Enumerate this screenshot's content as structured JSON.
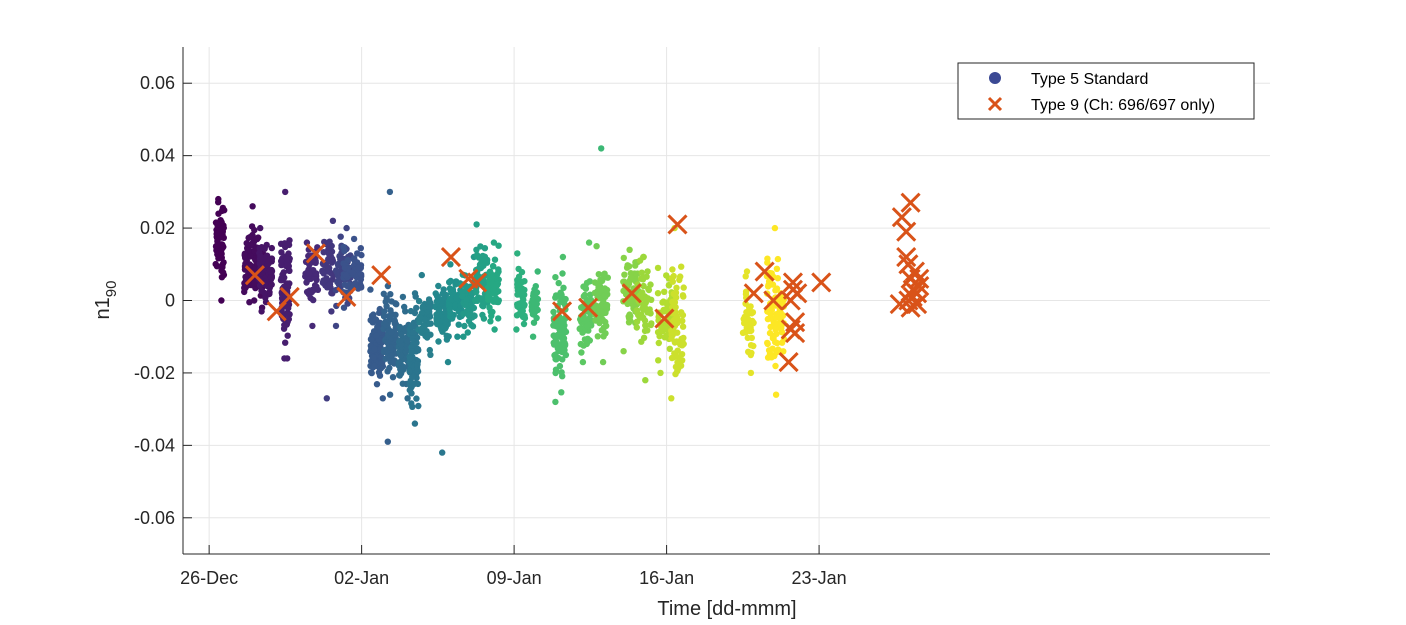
{
  "chart_data": {
    "type": "scatter",
    "title": "",
    "xlabel": "Time [dd-mmm]",
    "ylabel": {
      "base": "n1",
      "subscript": "90"
    },
    "xlim": [
      -1.2,
      48.7
    ],
    "ylim": [
      -0.07,
      0.07
    ],
    "grid": true,
    "legend_position": "top-right",
    "x_ticks": [
      {
        "value": 0,
        "label": "26-Dec"
      },
      {
        "value": 7,
        "label": "02-Jan"
      },
      {
        "value": 14,
        "label": "09-Jan"
      },
      {
        "value": 21,
        "label": "16-Jan"
      },
      {
        "value": 28,
        "label": "23-Jan"
      }
    ],
    "y_ticks": [
      {
        "value": -0.06,
        "label": "-0.06"
      },
      {
        "value": -0.04,
        "label": "-0.04"
      },
      {
        "value": -0.02,
        "label": "-0.02"
      },
      {
        "value": 0,
        "label": "0"
      },
      {
        "value": 0.02,
        "label": "0.02"
      },
      {
        "value": 0.04,
        "label": "0.04"
      },
      {
        "value": 0.06,
        "label": "0.06"
      }
    ],
    "series": [
      {
        "name": "Type 5 Standard",
        "marker": "dot",
        "legend_color": "#3b4994",
        "colormap": "viridis",
        "clusters": [
          {
            "x_range": [
              0.3,
              0.7
            ],
            "y_range": [
              0.0,
              0.028
            ],
            "center": 0.016,
            "n": 70
          },
          {
            "x_range": [
              1.6,
              2.5
            ],
            "y_range": [
              -0.002,
              0.026
            ],
            "center": 0.01,
            "n": 110
          },
          {
            "x_range": [
              2.3,
              2.9
            ],
            "y_range": [
              -0.003,
              0.02
            ],
            "center": 0.008,
            "n": 80
          },
          {
            "x_range": [
              3.3,
              3.7
            ],
            "y_range": [
              -0.016,
              0.03
            ],
            "center": 0.002,
            "n": 90
          },
          {
            "x_range": [
              4.4,
              5.0
            ],
            "y_range": [
              -0.007,
              0.016
            ],
            "center": 0.008,
            "n": 50
          },
          {
            "x_range": [
              5.2,
              5.7
            ],
            "y_range": [
              -0.003,
              0.022
            ],
            "center": 0.009,
            "n": 50
          },
          {
            "x_range": [
              5.8,
              6.5
            ],
            "y_range": [
              -0.007,
              0.02
            ],
            "center": 0.007,
            "n": 70
          },
          {
            "x_range": [
              6.1,
              7.0
            ],
            "y_range": [
              -0.002,
              0.017
            ],
            "center": 0.007,
            "n": 60
          },
          {
            "x_range": [
              7.4,
              8.0
            ],
            "y_range": [
              -0.027,
              0.003
            ],
            "center": -0.012,
            "n": 90
          },
          {
            "x_range": [
              8.0,
              8.6
            ],
            "y_range": [
              -0.026,
              0.004
            ],
            "center": -0.01,
            "n": 80
          },
          {
            "x_range": [
              8.7,
              9.2
            ],
            "y_range": [
              -0.027,
              0.001
            ],
            "center": -0.013,
            "n": 60
          },
          {
            "x_range": [
              9.2,
              9.6
            ],
            "y_range": [
              -0.034,
              0.002
            ],
            "center": -0.015,
            "n": 80
          },
          {
            "x_range": [
              9.6,
              10.2
            ],
            "y_range": [
              -0.015,
              0.007
            ],
            "center": -0.005,
            "n": 50
          },
          {
            "x_range": [
              10.4,
              11.0
            ],
            "y_range": [
              -0.017,
              0.004
            ],
            "center": -0.004,
            "n": 70
          },
          {
            "x_range": [
              11.0,
              11.6
            ],
            "y_range": [
              -0.01,
              0.01
            ],
            "center": 0.0,
            "n": 60
          },
          {
            "x_range": [
              11.6,
              12.2
            ],
            "y_range": [
              -0.01,
              0.012
            ],
            "center": 0.0,
            "n": 60
          },
          {
            "x_range": [
              12.2,
              12.8
            ],
            "y_range": [
              -0.005,
              0.021
            ],
            "center": 0.006,
            "n": 60
          },
          {
            "x_range": [
              12.8,
              13.3
            ],
            "y_range": [
              -0.008,
              0.016
            ],
            "center": 0.004,
            "n": 60
          },
          {
            "x_range": [
              14.1,
              14.5
            ],
            "y_range": [
              -0.008,
              0.013
            ],
            "center": 0.001,
            "n": 40
          },
          {
            "x_range": [
              14.8,
              15.1
            ],
            "y_range": [
              -0.01,
              0.008
            ],
            "center": -0.002,
            "n": 30
          },
          {
            "x_range": [
              15.8,
              16.4
            ],
            "y_range": [
              -0.028,
              0.012
            ],
            "center": -0.006,
            "n": 90
          },
          {
            "x_range": [
              17.0,
              17.6
            ],
            "y_range": [
              -0.017,
              0.016
            ],
            "center": -0.004,
            "n": 60
          },
          {
            "x_range": [
              17.7,
              18.3
            ],
            "y_range": [
              -0.017,
              0.015
            ],
            "center": -0.001,
            "n": 70
          },
          {
            "x_range": [
              19.0,
              19.7
            ],
            "y_range": [
              -0.014,
              0.014
            ],
            "center": 0.002,
            "n": 60
          },
          {
            "x_range": [
              19.6,
              20.3
            ],
            "y_range": [
              -0.022,
              0.012
            ],
            "center": -0.001,
            "n": 60
          },
          {
            "x_range": [
              20.6,
              21.3
            ],
            "y_range": [
              -0.02,
              0.009
            ],
            "center": -0.004,
            "n": 60
          },
          {
            "x_range": [
              21.2,
              21.8
            ],
            "y_range": [
              -0.027,
              0.02
            ],
            "center": -0.006,
            "n": 70
          },
          {
            "x_range": [
              24.5,
              25.0
            ],
            "y_range": [
              -0.02,
              0.008
            ],
            "center": -0.006,
            "n": 40
          },
          {
            "x_range": [
              25.6,
              26.4
            ],
            "y_range": [
              -0.026,
              0.02
            ],
            "center": -0.004,
            "n": 90
          }
        ],
        "outliers": [
          {
            "x": 5.4,
            "y": -0.027
          },
          {
            "x": 8.2,
            "y": -0.039
          },
          {
            "x": 8.3,
            "y": 0.03
          },
          {
            "x": 10.7,
            "y": -0.042
          },
          {
            "x": 18.0,
            "y": 0.042
          }
        ]
      },
      {
        "name": "Type 9 (Ch: 696/697 only)",
        "marker": "x",
        "color": "#d95319",
        "points": [
          {
            "x": 2.1,
            "y": 0.007
          },
          {
            "x": 3.1,
            "y": -0.003
          },
          {
            "x": 3.7,
            "y": 0.001
          },
          {
            "x": 4.9,
            "y": 0.013
          },
          {
            "x": 6.3,
            "y": 0.001
          },
          {
            "x": 7.9,
            "y": 0.007
          },
          {
            "x": 11.1,
            "y": 0.012
          },
          {
            "x": 11.9,
            "y": 0.006
          },
          {
            "x": 12.3,
            "y": 0.005
          },
          {
            "x": 16.2,
            "y": -0.003
          },
          {
            "x": 17.4,
            "y": -0.002
          },
          {
            "x": 19.4,
            "y": 0.002
          },
          {
            "x": 20.9,
            "y": -0.005
          },
          {
            "x": 21.5,
            "y": 0.021
          },
          {
            "x": 25.0,
            "y": 0.002
          },
          {
            "x": 25.5,
            "y": 0.008
          },
          {
            "x": 25.9,
            "y": 0.0
          },
          {
            "x": 26.6,
            "y": -0.017
          },
          {
            "x": 26.7,
            "y": -0.008
          },
          {
            "x": 26.7,
            "y": 0.0
          },
          {
            "x": 26.8,
            "y": 0.003
          },
          {
            "x": 26.8,
            "y": 0.005
          },
          {
            "x": 26.9,
            "y": -0.006
          },
          {
            "x": 26.9,
            "y": -0.009
          },
          {
            "x": 27.0,
            "y": 0.002
          },
          {
            "x": 28.1,
            "y": 0.005
          },
          {
            "x": 31.8,
            "y": 0.023
          },
          {
            "x": 32.2,
            "y": 0.027
          },
          {
            "x": 31.7,
            "y": -0.001
          },
          {
            "x": 32.0,
            "y": 0.019
          },
          {
            "x": 32.0,
            "y": 0.012
          },
          {
            "x": 32.1,
            "y": 0.01
          },
          {
            "x": 32.2,
            "y": 0.006
          },
          {
            "x": 32.3,
            "y": 0.003
          },
          {
            "x": 32.1,
            "y": 0.0
          },
          {
            "x": 32.4,
            "y": 0.008
          },
          {
            "x": 32.5,
            "y": -0.001
          },
          {
            "x": 32.3,
            "y": 0.001
          },
          {
            "x": 32.6,
            "y": 0.004
          },
          {
            "x": 32.2,
            "y": -0.002
          },
          {
            "x": 32.5,
            "y": 0.002
          },
          {
            "x": 32.6,
            "y": 0.006
          }
        ]
      }
    ]
  }
}
